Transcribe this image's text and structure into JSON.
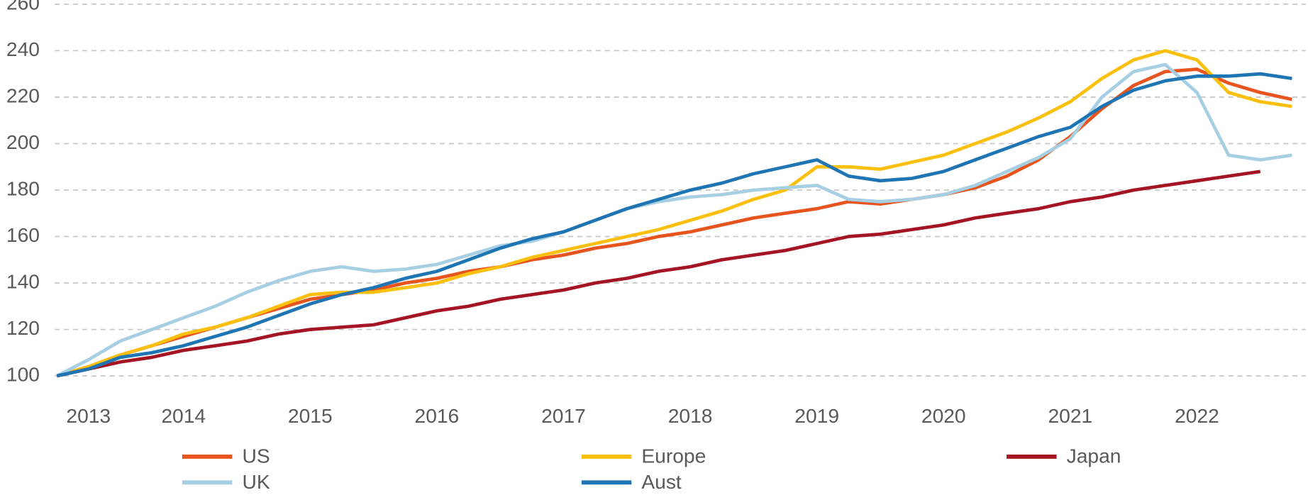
{
  "chart_data": {
    "type": "line",
    "x": [
      2013.5,
      2013.75,
      2014,
      2014.25,
      2014.5,
      2014.75,
      2015,
      2015.25,
      2015.5,
      2015.75,
      2016,
      2016.25,
      2016.5,
      2016.75,
      2017,
      2017.25,
      2017.5,
      2017.75,
      2018,
      2018.25,
      2018.5,
      2018.75,
      2019,
      2019.25,
      2019.5,
      2019.75,
      2020,
      2020.25,
      2020.5,
      2020.75,
      2021,
      2021.25,
      2021.5,
      2021.75,
      2022,
      2022.25,
      2022.5,
      2022.75,
      2023,
      2023.25
    ],
    "series": [
      {
        "name": "US",
        "color": "#e8541e",
        "values": [
          100,
          104,
          109,
          113,
          117,
          121,
          125,
          129,
          133,
          135,
          137,
          140,
          142,
          145,
          147,
          150,
          152,
          155,
          157,
          160,
          162,
          165,
          168,
          170,
          172,
          175,
          174,
          176,
          178,
          181,
          186,
          193,
          203,
          215,
          225,
          231,
          232,
          226,
          222,
          219
        ]
      },
      {
        "name": "Europe",
        "color": "#fbbf0e",
        "values": [
          100,
          104,
          109,
          113,
          118,
          121,
          125,
          130,
          135,
          136,
          136,
          138,
          140,
          144,
          147,
          151,
          154,
          157,
          160,
          163,
          167,
          171,
          176,
          180,
          190,
          190,
          189,
          192,
          195,
          200,
          205,
          211,
          218,
          228,
          236,
          240,
          236,
          222,
          218,
          216
        ]
      },
      {
        "name": "Japan",
        "color": "#a51422",
        "values": [
          100,
          103,
          106,
          108,
          111,
          113,
          115,
          118,
          120,
          121,
          122,
          125,
          128,
          130,
          133,
          135,
          137,
          140,
          142,
          145,
          147,
          150,
          152,
          154,
          157,
          160,
          161,
          163,
          165,
          168,
          170,
          172,
          175,
          177,
          180,
          182,
          184,
          186,
          188,
          null
        ]
      },
      {
        "name": "UK",
        "color": "#a7cfe3",
        "values": [
          100,
          107,
          115,
          120,
          125,
          130,
          136,
          141,
          145,
          147,
          145,
          146,
          148,
          152,
          156,
          158,
          162,
          167,
          172,
          175,
          177,
          178,
          180,
          181,
          182,
          176,
          175,
          176,
          178,
          182,
          188,
          194,
          202,
          220,
          231,
          234,
          222,
          195,
          193,
          195
        ]
      },
      {
        "name": "Aust",
        "color": "#1f75b3",
        "values": [
          100,
          103,
          108,
          110,
          113,
          117,
          121,
          126,
          131,
          135,
          138,
          142,
          145,
          150,
          155,
          159,
          162,
          167,
          172,
          176,
          180,
          183,
          187,
          190,
          193,
          186,
          184,
          185,
          188,
          193,
          198,
          203,
          207,
          216,
          223,
          227,
          229,
          229,
          230,
          228
        ]
      }
    ],
    "xlim": [
      2013.47,
      2023.3
    ],
    "xticks": [
      {
        "value": 2013.75,
        "label": "2013"
      },
      {
        "value": 2014.5,
        "label": "2014"
      },
      {
        "value": 2015.5,
        "label": "2015"
      },
      {
        "value": 2016.5,
        "label": "2016"
      },
      {
        "value": 2017.5,
        "label": "2017"
      },
      {
        "value": 2018.5,
        "label": "2018"
      },
      {
        "value": 2019.5,
        "label": "2019"
      },
      {
        "value": 2020.5,
        "label": "2020"
      },
      {
        "value": 2021.5,
        "label": "2021"
      },
      {
        "value": 2022.5,
        "label": "2022"
      }
    ],
    "ylim": [
      90,
      260
    ],
    "yticks": [
      100,
      120,
      140,
      160,
      180,
      200,
      220,
      240,
      260
    ],
    "grid": true
  }
}
